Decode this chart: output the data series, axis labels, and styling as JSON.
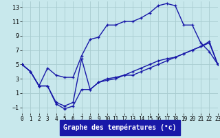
{
  "xlabel": "Graphe des températures (°c)",
  "background_color": "#c8e8ec",
  "grid_color": "#a8ccd0",
  "line_color": "#1818a8",
  "xlim": [
    0,
    23
  ],
  "ylim": [
    -1.8,
    13.8
  ],
  "xticks": [
    0,
    1,
    2,
    3,
    4,
    5,
    6,
    7,
    8,
    9,
    10,
    11,
    12,
    13,
    14,
    15,
    16,
    17,
    18,
    19,
    20,
    21,
    22,
    23
  ],
  "yticks": [
    -1,
    1,
    3,
    5,
    7,
    9,
    11,
    13
  ],
  "line1_x": [
    0,
    1,
    2,
    3,
    4,
    5,
    6,
    7,
    8,
    9,
    10,
    11,
    12,
    13,
    14,
    15,
    16,
    17,
    18,
    19,
    20,
    21,
    22,
    23
  ],
  "line1_y": [
    5.0,
    4.0,
    2.0,
    4.5,
    3.5,
    3.2,
    3.2,
    6.2,
    8.5,
    8.8,
    10.5,
    10.5,
    11.0,
    11.0,
    11.5,
    12.2,
    13.2,
    13.5,
    13.2,
    10.5,
    10.5,
    8.0,
    6.8,
    5.0
  ],
  "line2_x": [
    0,
    1,
    2,
    3,
    4,
    5,
    6,
    7,
    8,
    9,
    10,
    11,
    12,
    13,
    14,
    15,
    16,
    17,
    18,
    19,
    20,
    21,
    22,
    23
  ],
  "line2_y": [
    5.0,
    4.0,
    2.0,
    2.0,
    -0.5,
    -1.2,
    -0.8,
    1.5,
    1.5,
    2.5,
    3.0,
    3.2,
    3.5,
    3.5,
    4.0,
    4.5,
    5.0,
    5.5,
    6.0,
    6.5,
    7.0,
    7.5,
    8.2,
    5.0
  ],
  "line3_x": [
    0,
    1,
    2,
    3,
    4,
    5,
    6,
    7,
    8,
    9,
    10,
    11,
    12,
    13,
    14,
    15,
    16,
    17,
    18,
    19,
    20,
    21,
    22,
    23
  ],
  "line3_y": [
    5.0,
    4.0,
    2.0,
    2.0,
    -0.3,
    -0.8,
    -0.3,
    5.8,
    1.5,
    2.5,
    2.8,
    3.0,
    3.5,
    4.0,
    4.5,
    5.0,
    5.5,
    5.8,
    6.0,
    6.5,
    7.0,
    7.5,
    8.0,
    5.0
  ],
  "xlabel_color": "#000080",
  "xlabel_fontsize": 7,
  "tick_fontsize_x": 5.5,
  "tick_fontsize_y": 6,
  "line_width": 1.0,
  "marker_size": 3.0
}
